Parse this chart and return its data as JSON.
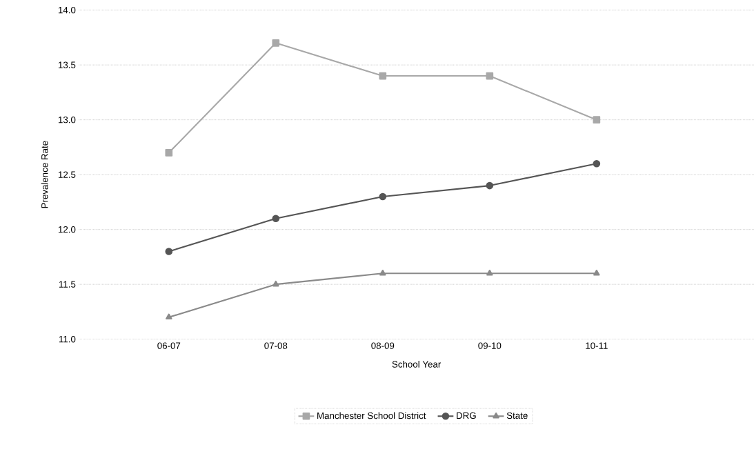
{
  "chart_data": {
    "type": "line",
    "xlabel": "School Year",
    "ylabel": "Prevalence Rate",
    "categories": [
      "06-07",
      "07-08",
      "08-09",
      "09-10",
      "10-11"
    ],
    "series": [
      {
        "name": "Manchester School District",
        "color": "#a8a8a8",
        "marker": "square",
        "values": [
          12.7,
          13.7,
          13.4,
          13.4,
          13.0
        ]
      },
      {
        "name": "DRG",
        "color": "#555555",
        "marker": "circle",
        "values": [
          11.8,
          12.1,
          12.3,
          12.4,
          12.6
        ]
      },
      {
        "name": "State",
        "color": "#8a8a8a",
        "marker": "triangle",
        "values": [
          11.2,
          11.5,
          11.6,
          11.6,
          11.6
        ]
      }
    ],
    "ylim": [
      11.0,
      14.0
    ],
    "yticks": [
      {
        "value": 11.0,
        "label": "11.0"
      },
      {
        "value": 11.5,
        "label": "11.5"
      },
      {
        "value": 12.0,
        "label": "12.0"
      },
      {
        "value": 12.5,
        "label": "12.5"
      },
      {
        "value": 13.0,
        "label": "13.0"
      },
      {
        "value": 13.5,
        "label": "13.5"
      },
      {
        "value": 14.0,
        "label": "14.0"
      }
    ],
    "grid": "y",
    "legend": "bottom",
    "line_style": "solid"
  }
}
